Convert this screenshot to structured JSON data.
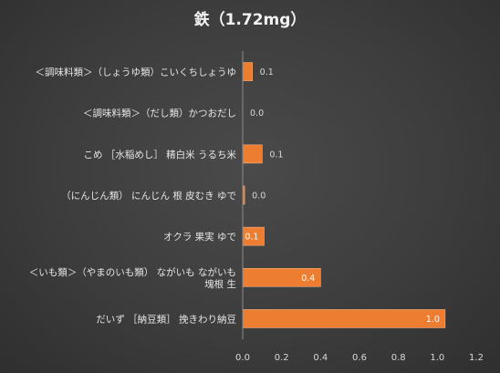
{
  "chart_data": {
    "type": "bar",
    "orientation": "horizontal",
    "title": "鉄（1.72mg）",
    "xlabel": "",
    "ylabel": "",
    "xlim": [
      0,
      1.2
    ],
    "xticks": [
      "0.0",
      "0.2",
      "0.4",
      "0.6",
      "0.8",
      "1.0",
      "1.2"
    ],
    "xtick_values": [
      0,
      0.2,
      0.4,
      0.6,
      0.8,
      1.0,
      1.2
    ],
    "grid": false,
    "legend": "none",
    "bar_color": "#ed7d31",
    "bar_edge_color": "#f4b183",
    "categories": [
      [
        "＜調味料類＞（しょうゆ類）こいくちしょうゆ"
      ],
      [
        "＜調味料類＞（だし類）かつおだし"
      ],
      [
        "こめ ［水稲めし］ 精白米 うるち米"
      ],
      [
        "（にんじん類） にんじん 根 皮むき ゆで"
      ],
      [
        "オクラ 果実 ゆで"
      ],
      [
        "＜いも類＞（やまのいも類） ながいも ながいも",
        "塊根 生"
      ],
      [
        "だいず ［納豆類］ 挽きわり納豆"
      ]
    ],
    "values": [
      0.05,
      0.0,
      0.1,
      0.01,
      0.11,
      0.4,
      1.04
    ],
    "data_labels": [
      "0.1",
      "0.0",
      "0.1",
      "0.0",
      "0.1",
      "0.4",
      "1.0"
    ]
  }
}
